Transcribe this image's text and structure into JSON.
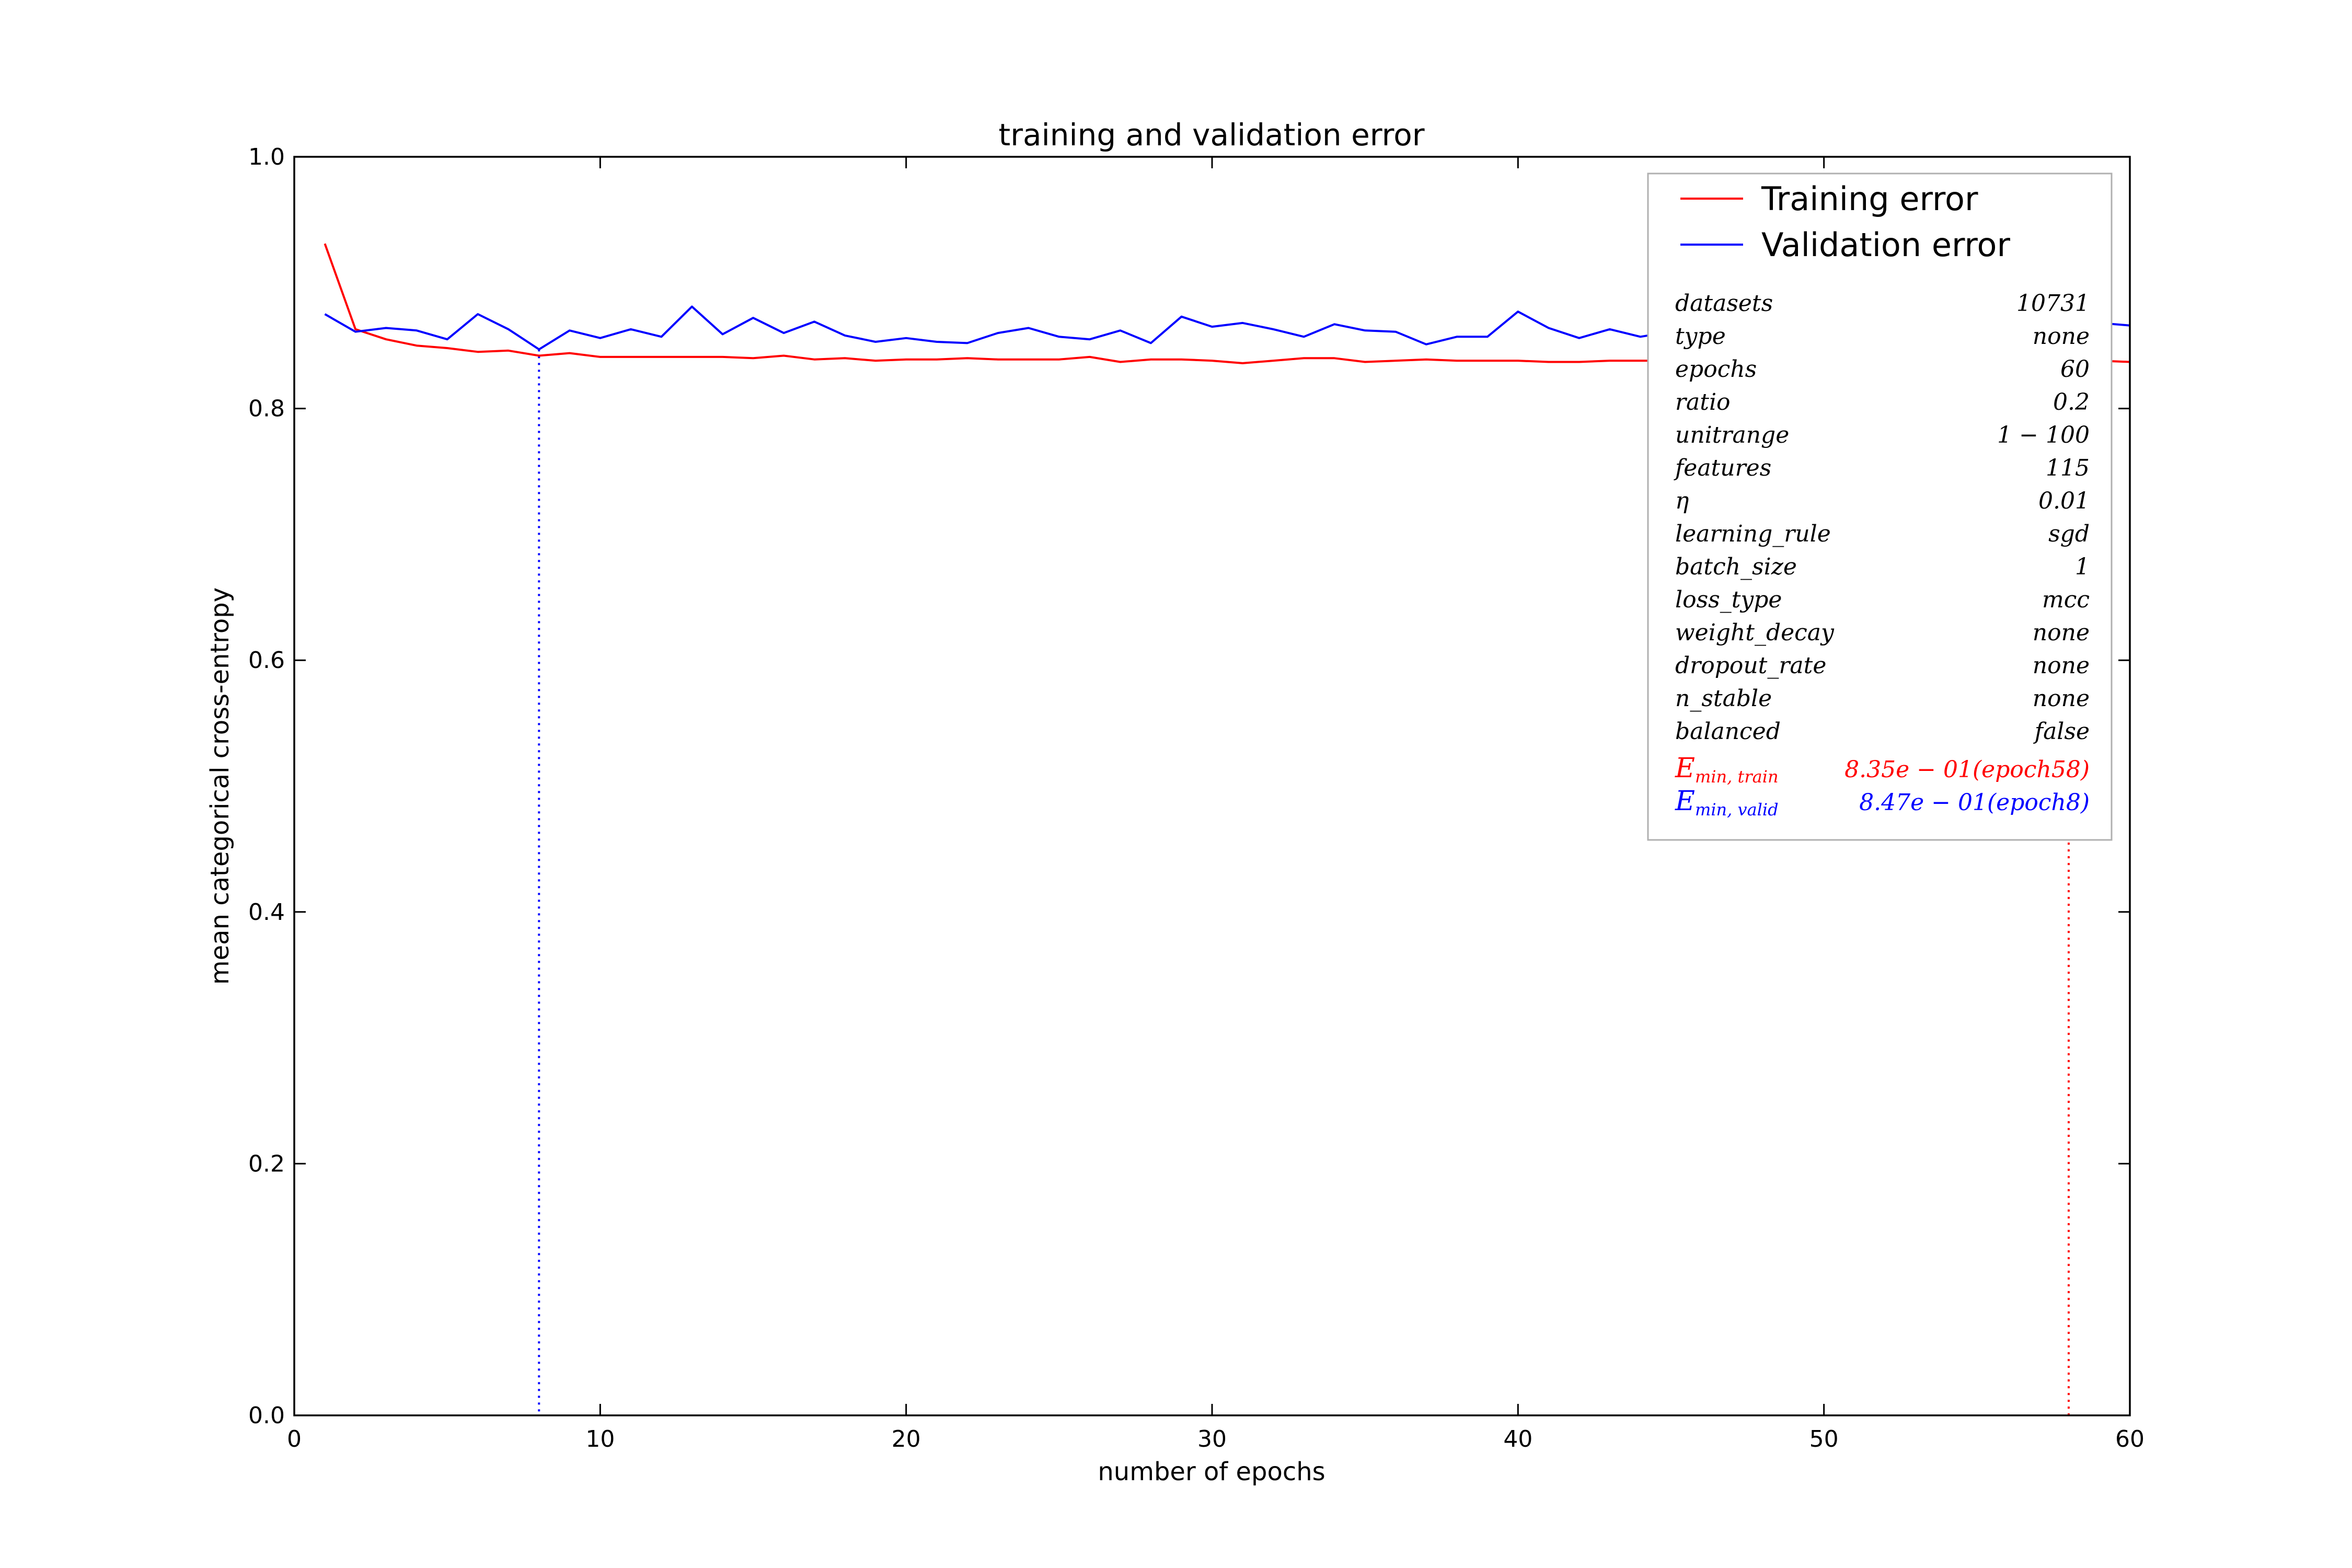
{
  "chart_data": {
    "type": "line",
    "title": "training and validation error",
    "xlabel": "number of epochs",
    "ylabel": "mean categorical cross-entropy",
    "xlim": [
      0,
      60
    ],
    "ylim": [
      0.0,
      1.0
    ],
    "xticks": [
      "0",
      "10",
      "20",
      "30",
      "40",
      "50",
      "60"
    ],
    "yticks": [
      "0.0",
      "0.2",
      "0.4",
      "0.6",
      "0.8",
      "1.0"
    ],
    "grid": false,
    "legend_position": "top-right",
    "series": [
      {
        "name": "Training error",
        "color": "#ff0000",
        "x": [
          1,
          2,
          3,
          4,
          5,
          6,
          7,
          8,
          9,
          10,
          11,
          12,
          13,
          14,
          15,
          16,
          17,
          18,
          19,
          20,
          21,
          22,
          23,
          24,
          25,
          26,
          27,
          28,
          29,
          30,
          31,
          32,
          33,
          34,
          35,
          36,
          37,
          38,
          39,
          40,
          41,
          42,
          43,
          44,
          45,
          46,
          47,
          48,
          49,
          50,
          51,
          52,
          53,
          54,
          55,
          56,
          57,
          58,
          59,
          60
        ],
        "values": [
          0.931,
          0.863,
          0.855,
          0.85,
          0.848,
          0.845,
          0.846,
          0.842,
          0.844,
          0.841,
          0.841,
          0.841,
          0.841,
          0.841,
          0.84,
          0.842,
          0.839,
          0.84,
          0.838,
          0.839,
          0.839,
          0.84,
          0.839,
          0.839,
          0.839,
          0.841,
          0.837,
          0.839,
          0.839,
          0.838,
          0.836,
          0.838,
          0.84,
          0.84,
          0.837,
          0.838,
          0.839,
          0.838,
          0.838,
          0.838,
          0.837,
          0.837,
          0.838,
          0.838,
          0.838,
          0.837,
          0.837,
          0.837,
          0.837,
          0.837,
          0.838,
          0.838,
          0.838,
          0.837,
          0.838,
          0.837,
          0.837,
          0.835,
          0.838,
          0.837
        ]
      },
      {
        "name": "Validation error",
        "color": "#0000ff",
        "x": [
          1,
          2,
          3,
          4,
          5,
          6,
          7,
          8,
          9,
          10,
          11,
          12,
          13,
          14,
          15,
          16,
          17,
          18,
          19,
          20,
          21,
          22,
          23,
          24,
          25,
          26,
          27,
          28,
          29,
          30,
          31,
          32,
          33,
          34,
          35,
          36,
          37,
          38,
          39,
          40,
          41,
          42,
          43,
          44,
          45,
          46,
          47,
          48,
          49,
          50,
          51,
          52,
          53,
          54,
          55,
          56,
          57,
          58,
          59,
          60
        ],
        "values": [
          0.875,
          0.861,
          0.864,
          0.862,
          0.855,
          0.875,
          0.863,
          0.847,
          0.862,
          0.856,
          0.863,
          0.857,
          0.881,
          0.859,
          0.872,
          0.86,
          0.869,
          0.858,
          0.853,
          0.856,
          0.853,
          0.852,
          0.86,
          0.864,
          0.857,
          0.855,
          0.862,
          0.852,
          0.873,
          0.865,
          0.868,
          0.863,
          0.857,
          0.867,
          0.862,
          0.861,
          0.851,
          0.857,
          0.857,
          0.877,
          0.864,
          0.856,
          0.863,
          0.857,
          0.861,
          0.857,
          0.882,
          0.857,
          0.857,
          0.867,
          0.857,
          0.859,
          0.864,
          0.894,
          0.857,
          0.861,
          0.866,
          0.89,
          0.868,
          0.866
        ]
      }
    ],
    "vlines": [
      {
        "x": 8,
        "color": "#0000ff",
        "style": "dotted"
      },
      {
        "x": 58,
        "color": "#ff0000",
        "style": "dotted"
      }
    ],
    "legend_params": [
      {
        "key": "datasets",
        "value": "10731"
      },
      {
        "key": "type",
        "value": "none"
      },
      {
        "key": "epochs",
        "value": "60"
      },
      {
        "key": "ratio",
        "value": "0.2"
      },
      {
        "key": "unitrange",
        "value": "1 − 100"
      },
      {
        "key": "features",
        "value": "115"
      },
      {
        "key": "η",
        "value": "0.01"
      },
      {
        "key": "learning_rule",
        "value": "sgd"
      },
      {
        "key": "batch_size",
        "value": "1"
      },
      {
        "key": "loss_type",
        "value": "mcc"
      },
      {
        "key": "weight_decay",
        "value": "none"
      },
      {
        "key": "dropout_rate",
        "value": "none"
      },
      {
        "key": "n_stable",
        "value": "none"
      },
      {
        "key": "balanced",
        "value": "false"
      }
    ],
    "minima": [
      {
        "label": "E",
        "sub": "min, train",
        "value": "8.35e − 01(epoch58)",
        "color": "#ff0000"
      },
      {
        "label": "E",
        "sub": "min, valid",
        "value": "8.47e − 01(epoch8)",
        "color": "#0000ff"
      }
    ]
  }
}
